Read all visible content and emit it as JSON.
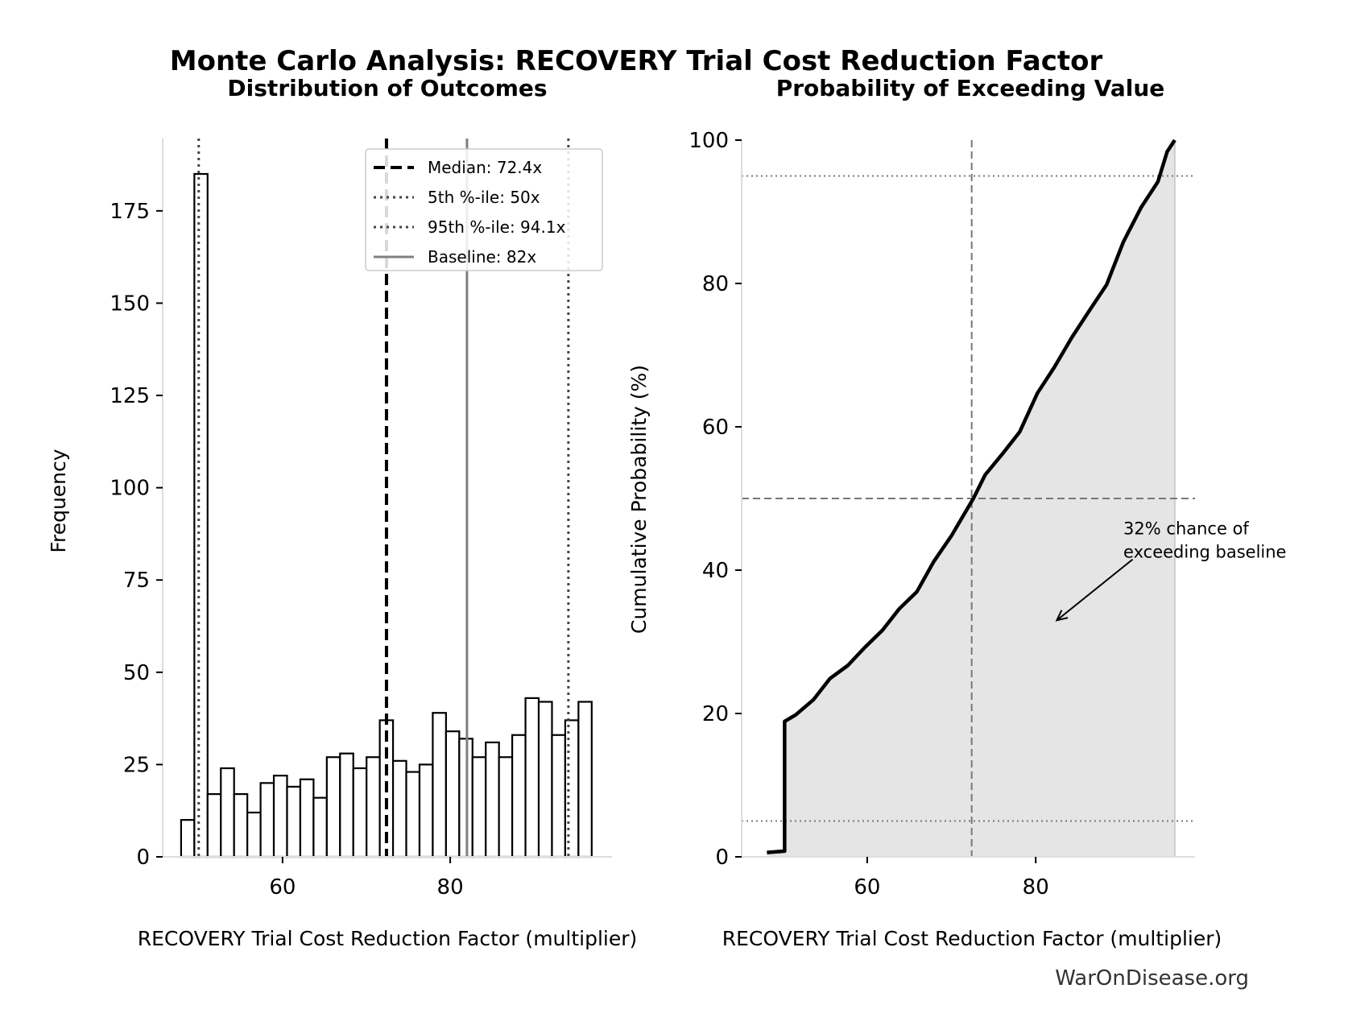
{
  "title": "Monte Carlo Analysis: RECOVERY Trial Cost Reduction Factor",
  "watermark": "WarOnDisease.org",
  "chart_data": [
    {
      "type": "bar",
      "subtitle": "Distribution of Outcomes",
      "xlabel": "RECOVERY Trial Cost Reduction Factor (multiplier)",
      "ylabel": "Frequency",
      "xlim": [
        45.7,
        99.3
      ],
      "ylim": [
        0,
        194.6
      ],
      "xticks": [
        60,
        80
      ],
      "yticks": [
        0,
        25,
        50,
        75,
        100,
        125,
        150,
        175
      ],
      "bin_start": 47.9,
      "bin_width": 1.58,
      "values": [
        10,
        185,
        17,
        24,
        17,
        12,
        20,
        22,
        19,
        21,
        16,
        27,
        28,
        24,
        27,
        37,
        26,
        23,
        25,
        39,
        34,
        32,
        27,
        31,
        27,
        33,
        43,
        42,
        33,
        37,
        42
      ],
      "bar_fill": "#ffffff",
      "bar_edge": "#000000",
      "reference_lines": [
        {
          "label": "Median: 72.4x",
          "x": 72.4,
          "style": "dashed",
          "color": "#000000"
        },
        {
          "label": "5th %-ile: 50x",
          "x": 50,
          "style": "dotted",
          "color": "#444444"
        },
        {
          "label": "95th %-ile: 94.1x",
          "x": 94.1,
          "style": "dotted",
          "color": "#444444"
        },
        {
          "label": "Baseline: 82x",
          "x": 82,
          "style": "solid",
          "color": "#808080"
        }
      ],
      "legend_placement": "top-right",
      "grid": false
    },
    {
      "type": "line",
      "subtitle": "Probability of Exceeding Value",
      "xlabel": "RECOVERY Trial Cost Reduction Factor (multiplier)",
      "ylabel": "Cumulative Probability (%)",
      "xlim": [
        45.1,
        98.9
      ],
      "ylim": [
        0,
        100
      ],
      "xticks": [
        60,
        80
      ],
      "yticks": [
        0,
        20,
        40,
        60,
        80,
        100
      ],
      "x": [
        48.1,
        50.2,
        50.2,
        51.5,
        53.6,
        55.6,
        57.7,
        59.7,
        61.8,
        63.8,
        65.9,
        67.9,
        70.0,
        72.6,
        74.0,
        76.1,
        78.1,
        80.2,
        82.2,
        84.3,
        86.3,
        88.4,
        90.4,
        92.5,
        94.5,
        95.6,
        96.5
      ],
      "y": [
        0.6,
        0.8,
        18.9,
        19.8,
        21.9,
        24.9,
        26.7,
        29.2,
        31.6,
        34.6,
        37.0,
        41.2,
        44.8,
        50.0,
        53.3,
        56.3,
        59.3,
        64.7,
        68.3,
        72.5,
        76.1,
        79.8,
        85.8,
        90.6,
        94.2,
        98.4,
        100
      ],
      "fill_color": "#e5e5e5",
      "line_color": "#000000",
      "hlines": [
        5,
        50,
        95
      ],
      "vline": 72.4,
      "annotation": {
        "text_lines": [
          "32% chance of",
          "exceeding baseline"
        ],
        "text_at": [
          90.4,
          45
        ],
        "arrow_from": [
          91.5,
          41.5
        ],
        "arrow_to": [
          82.5,
          33
        ]
      },
      "grid": false
    }
  ]
}
